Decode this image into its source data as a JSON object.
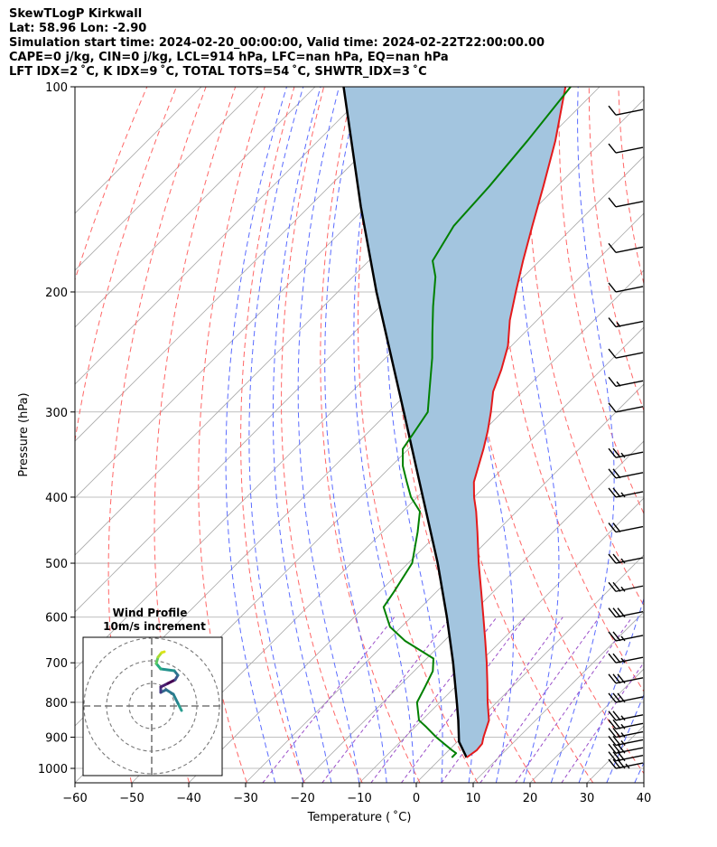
{
  "header": {
    "title": "SkewTLogP Kirkwall",
    "location": "Lat: 58.96   Lon: -2.90",
    "times": "Simulation start time: 2024-02-20_00:00:00, Valid time: 2024-02-22T22:00:00.00",
    "indices1": "CAPE=0 j/kg, CIN=0 j/kg, LCL=914 hPa, LFC=nan hPa, EQ=nan hPa",
    "indices2": "LFT IDX=2 ˚C, K IDX=9 ˚C, TOTAL TOTS=54 ˚C, SHWTR_IDX=3 ˚C"
  },
  "chart_data": {
    "type": "line",
    "diagram": "skew-T log-P",
    "xlabel": "Temperature ( ˚C)",
    "ylabel": "Pressure (hPa)",
    "xlim": [
      -60,
      40
    ],
    "ylim": [
      1050,
      100
    ],
    "y_scale": "log",
    "x_ticks": [
      -60,
      -50,
      -40,
      -30,
      -20,
      -10,
      0,
      10,
      20,
      30,
      40
    ],
    "x_tick_labels": [
      "−60",
      "−50",
      "−40",
      "−30",
      "−20",
      "−10",
      "0",
      "10",
      "20",
      "30",
      "40"
    ],
    "y_ticks": [
      100,
      200,
      300,
      400,
      500,
      600,
      700,
      800,
      900,
      1000
    ],
    "grid": true,
    "colors": {
      "temperature": "#e41a1c",
      "dewpoint": "#008000",
      "parcel": "#000000",
      "cape_shade": "#a3c5df",
      "dry_adiabats": "#ff6666",
      "moist_adiabats": "#5a6bff",
      "mixing_ratio": "#9b4fc9",
      "isotherms": "#aaaaaa"
    },
    "series": [
      {
        "role": "temperature",
        "pressure": [
          964,
          940,
          920,
          900,
          870,
          850,
          800,
          750,
          700,
          650,
          600,
          550,
          500,
          450,
          420,
          400,
          380,
          360,
          340,
          320,
          300,
          280,
          260,
          240,
          220,
          200,
          180,
          160,
          140,
          120,
          100
        ],
        "temperature": [
          4.4,
          4.9,
          4.7,
          3.8,
          2.6,
          1.8,
          -1.6,
          -5.0,
          -8.7,
          -12.8,
          -17.3,
          -22.2,
          -27.6,
          -33.3,
          -37.1,
          -40.0,
          -42.7,
          -44.7,
          -46.8,
          -49.2,
          -52.0,
          -55.2,
          -57.6,
          -60.6,
          -64.8,
          -68.7,
          -72.9,
          -77.4,
          -82.4,
          -88.3,
          -96.0
        ]
      },
      {
        "role": "dewpoint",
        "pressure": [
          964,
          950,
          940,
          920,
          900,
          870,
          850,
          800,
          760,
          720,
          690,
          650,
          620,
          580,
          550,
          500,
          450,
          420,
          400,
          380,
          360,
          340,
          320,
          300,
          280,
          250,
          230,
          210,
          190,
          180,
          160,
          140,
          120,
          100
        ],
        "dewpoint": [
          1.8,
          1.8,
          0.5,
          -2.0,
          -4.5,
          -8.0,
          -10.5,
          -14.0,
          -15.3,
          -16.7,
          -18.8,
          -26.9,
          -32.0,
          -36.6,
          -37.5,
          -39.3,
          -43.8,
          -47.0,
          -51.1,
          -54.5,
          -58.0,
          -61.0,
          -62.0,
          -63.1,
          -66.4,
          -71.8,
          -76.1,
          -80.7,
          -85.5,
          -88.8,
          -91.2,
          -91.9,
          -93.2,
          -95.1
        ]
      },
      {
        "role": "parcel",
        "pressure": [
          964,
          914,
          850,
          800,
          700,
          600,
          500,
          400,
          300,
          200,
          150,
          100
        ],
        "temperature": [
          4.4,
          0.3,
          -3.6,
          -7.0,
          -14.6,
          -23.7,
          -34.8,
          -49.0,
          -67.3,
          -93.2,
          -110.9,
          -135.0
        ]
      }
    ],
    "wind_barbs": {
      "pressure": [
        1000,
        975,
        950,
        925,
        900,
        875,
        850,
        800,
        750,
        700,
        650,
        600,
        550,
        500,
        450,
        400,
        375,
        350,
        300,
        275,
        250,
        225,
        200,
        175,
        150,
        125,
        110
      ],
      "speed_kt": [
        35,
        30,
        30,
        25,
        25,
        25,
        25,
        30,
        30,
        25,
        25,
        30,
        25,
        25,
        20,
        25,
        20,
        25,
        10,
        15,
        10,
        15,
        10,
        10,
        10,
        10,
        10
      ]
    },
    "hodograph": {
      "title": "Wind Profile",
      "subtitle": "10m/s increment"
    }
  }
}
